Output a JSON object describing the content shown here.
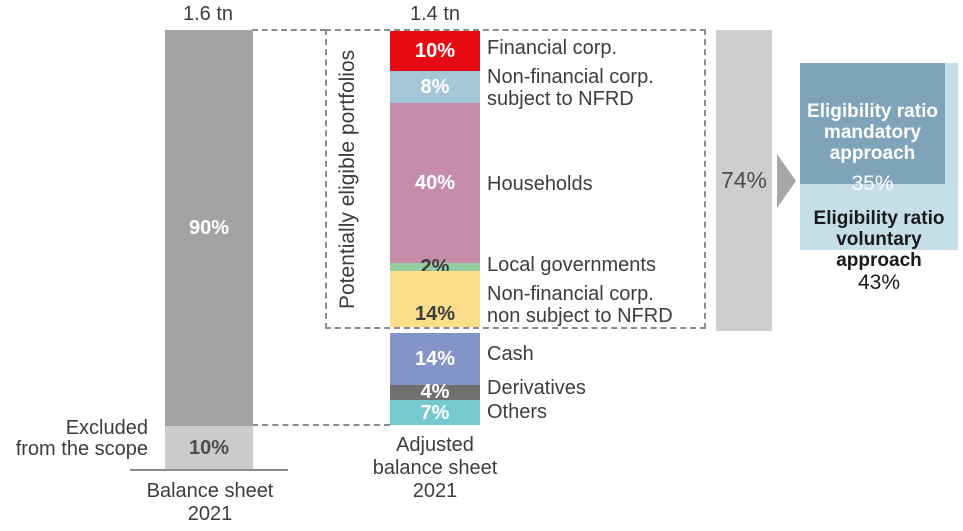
{
  "chart_data": {
    "type": "bar",
    "subtype": "stacked-percentage-composition",
    "legend_position": "right-of-segments",
    "bars": [
      {
        "axis_label": "Balance sheet\n2021",
        "total_label": "1.6 tn",
        "segments": [
          {
            "label": "",
            "value": 90,
            "display": "90%",
            "color": "#a3a3a3",
            "text_color": "#ffffff"
          },
          {
            "label": "Excluded\nfrom the scope",
            "value": 10,
            "display": "10%",
            "color": "#cbcbcb",
            "text_color": "#4d4d4d"
          }
        ]
      },
      {
        "axis_label": "Adjusted\nbalance sheet\n2021",
        "total_label": "1.4 tn",
        "segments": [
          {
            "label": "Financial corp.",
            "value": 10,
            "display": "10%",
            "color": "#e60b12",
            "text_color": "#ffffff"
          },
          {
            "label": "Non-financial corp.\nsubject to NFRD",
            "value": 8,
            "display": "8%",
            "color": "#a5c6d6",
            "text_color": "#ffffff"
          },
          {
            "label": "Households",
            "value": 40,
            "display": "40%",
            "color": "#c68dab",
            "text_color": "#ffffff"
          },
          {
            "label": "Local governments",
            "value": 2,
            "display": "2%",
            "color": "#95cda0",
            "text_color": "#3d3d3d"
          },
          {
            "label": "Non-financial corp.\nnon subject to NFRD",
            "value": 14,
            "display": "14%",
            "color": "#fbdd8a",
            "text_color": "#3d3d3d"
          },
          {
            "label": "Cash",
            "value": 14,
            "display": "14%",
            "color": "#8494c9",
            "text_color": "#ffffff"
          },
          {
            "label": "Derivatives",
            "value": 4,
            "display": "4%",
            "color": "#707070",
            "text_color": "#ffffff"
          },
          {
            "label": "Others",
            "value": 7,
            "display": "7%",
            "color": "#76c9ce",
            "text_color": "#ffffff"
          }
        ]
      }
    ],
    "group_box_label": "Potentially eligible portfolios",
    "eligible_total": {
      "value": 74,
      "display": "74%",
      "bar_color": "#cecece"
    },
    "callouts": [
      {
        "label": "Eligibility ratio\nmandatory\napproach",
        "value": "35%",
        "color": "#7fa4ba",
        "text_color": "#ffffff"
      },
      {
        "label": "Eligibility ratio\nvoluntary approach",
        "value": "43%",
        "color": "#c5dfe9",
        "text_color": "#1a1a1a"
      }
    ]
  }
}
